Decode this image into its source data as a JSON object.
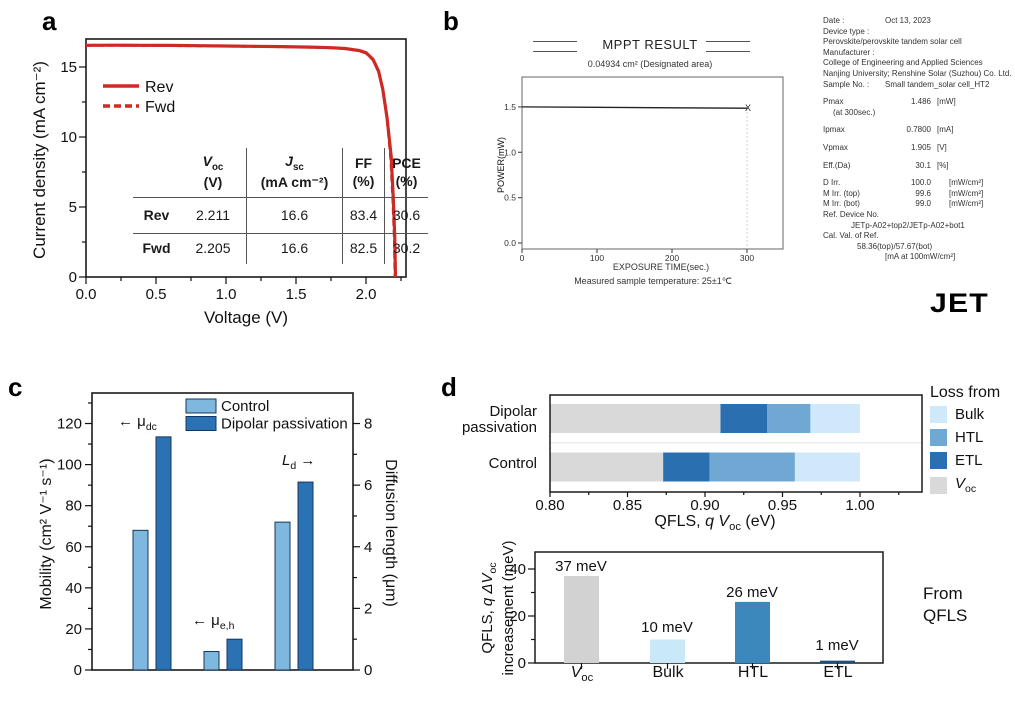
{
  "figure": {
    "panel_labels": [
      "a",
      "b",
      "c",
      "d"
    ]
  },
  "panel_a": {
    "xlabel": "Voltage (V)",
    "ylabel": "Current density (mA cm⁻²)",
    "legend": [
      "Rev",
      "Fwd"
    ],
    "table": {
      "headers": [
        {
          "sym": "V",
          "italic": true,
          "sub": "oc",
          "unit": "(V)"
        },
        {
          "sym": "J",
          "italic": true,
          "sub": "sc",
          "unit": "(mA cm⁻²)"
        },
        {
          "sym": "FF",
          "italic": false,
          "sub": "",
          "unit": "(%)"
        },
        {
          "sym": "PCE",
          "italic": false,
          "sub": "",
          "unit": "(%)"
        }
      ],
      "rows": [
        {
          "name": "Rev",
          "values": [
            "2.211",
            "16.6",
            "83.4",
            "30.6"
          ]
        },
        {
          "name": "Fwd",
          "values": [
            "2.205",
            "16.6",
            "82.5",
            "30.2"
          ]
        }
      ]
    }
  },
  "panel_b": {
    "title": "MPPT RESULT",
    "subtitle": "0.04934 cm² (Designated area)",
    "xlabel": "EXPOSURE TIME(sec.)",
    "ylabel": "POWER(mW)",
    "note": "Measured sample temperature: 25±1℃",
    "logo": "JET",
    "info_lines": [
      {
        "label": "Date :",
        "value": "Oct 13, 2023",
        "wide": true
      },
      {
        "label": "Device type :"
      },
      {
        "text": "Perovskite/perovskite tandem solar cell"
      },
      {
        "label": "Manufacturer :"
      },
      {
        "text": "College of Engineering and Applied Sciences"
      },
      {
        "text": "Nanjing University; Renshine Solar (Suzhou) Co. Ltd."
      },
      {
        "label": "Sample No. :",
        "value": "Small tandem_solar cell_HT2",
        "wide": true
      },
      {
        "label": "Pmax",
        "value": "1.486",
        "unit": "[mW]",
        "gap": true
      },
      {
        "text": "(at 300sec.)",
        "indent": 10
      },
      {
        "label": "Ipmax",
        "value": "0.7800",
        "unit": "[mA]",
        "gap": true
      },
      {
        "label": "Vpmax",
        "value": "1.905",
        "unit": "[V]",
        "gap": true
      },
      {
        "label": "Eff.(Da)",
        "value": "30.1",
        "unit": "[%]",
        "gap": true
      },
      {
        "label": "D Irr.",
        "value": "100.0",
        "unit": "[mW/cm²]",
        "far": true,
        "gap": true
      },
      {
        "label": "M Irr. (top)",
        "value": "99.6",
        "unit": "[mW/cm²]",
        "far": true
      },
      {
        "label": "M Irr. (bot)",
        "value": "99.0",
        "unit": "[mW/cm²]",
        "far": true
      },
      {
        "label": "Ref. Device No."
      },
      {
        "text": "JETp-A02+top2/JETp-A02+bot1",
        "indent": 28
      },
      {
        "label": "Cal. Val. of Ref."
      },
      {
        "text": "58.36(top)/57.67(bot)",
        "indent": 34
      },
      {
        "text": "[mA at 100mW/cm²]",
        "indent": 62
      }
    ]
  },
  "panel_c": {
    "ylabel_left": "Mobility (cm² V⁻¹ s⁻¹)",
    "ylabel_right": "Diffusion length (μm)",
    "legend": [
      "Control",
      "Dipolar passivation"
    ],
    "annotations": [
      {
        "parts": [
          {
            "t": "← μ"
          },
          {
            "t": "dc",
            "sub": 1
          }
        ]
      },
      {
        "parts": [
          {
            "t": "← μ"
          },
          {
            "t": "e,h",
            "sub": 1
          }
        ]
      },
      {
        "parts": [
          {
            "t": "L",
            "i": 1
          },
          {
            "t": "d",
            "sub": 1
          },
          {
            "t": " →"
          }
        ]
      }
    ]
  },
  "panel_d": {
    "legend_title": "Loss from",
    "legend_items": [
      {
        "parts": [
          {
            "t": "Bulk"
          }
        ],
        "color": "#cfe9fa"
      },
      {
        "parts": [
          {
            "t": "HTL"
          }
        ],
        "color": "#6fa8d2"
      },
      {
        "parts": [
          {
            "t": "ETL"
          }
        ],
        "color": "#2a6fb0"
      },
      {
        "parts": [
          {
            "t": "V",
            "i": 1
          },
          {
            "t": "oc",
            "sub": 1
          }
        ],
        "color": "#d9d9d9"
      }
    ],
    "row_labels": [
      "Dipolar",
      "passivation",
      "Control"
    ],
    "xlabel_parts": [
      {
        "t": "QFLS, "
      },
      {
        "t": "q V",
        "i": 1
      },
      {
        "t": "oc",
        "sub": 1
      },
      {
        "t": " (eV)"
      }
    ],
    "ylabel2_line1_parts": [
      {
        "t": "QFLS, "
      },
      {
        "t": "q ΔV",
        "i": 1
      },
      {
        "t": "oc",
        "sub": 1
      }
    ],
    "ylabel2_line2": "increasement (meV)",
    "from_qfls": [
      "From",
      "QFLS"
    ],
    "cat_parts": [
      [
        {
          "t": "V",
          "i": 1
        },
        {
          "t": "oc",
          "sub": 1
        }
      ],
      [
        {
          "t": "Bulk"
        }
      ],
      [
        {
          "t": "HTL"
        }
      ],
      [
        {
          "t": "ETL"
        }
      ]
    ]
  },
  "chart_data": [
    {
      "id": "a",
      "type": "line",
      "xlabel": "Voltage (V)",
      "ylabel": "Current density (mA cm⁻²)",
      "xlim": [
        0,
        2.29
      ],
      "ylim": [
        0,
        17.0
      ],
      "xticks": [
        0.0,
        0.5,
        1.0,
        1.5,
        2.0
      ],
      "xtick_labels": [
        "0.0",
        "0.5",
        "1.0",
        "1.5",
        "2.0"
      ],
      "yticks": [
        0,
        5,
        10,
        15
      ],
      "ytick_labels": [
        "0",
        "5",
        "10",
        "15"
      ],
      "line_color": "#cd2a24",
      "series": [
        {
          "name": "Rev",
          "style": "solid",
          "points": [
            [
              0,
              16.55
            ],
            [
              0.2,
              16.56
            ],
            [
              0.4,
              16.55
            ],
            [
              0.6,
              16.54
            ],
            [
              0.8,
              16.52
            ],
            [
              1.0,
              16.5
            ],
            [
              1.2,
              16.48
            ],
            [
              1.4,
              16.46
            ],
            [
              1.6,
              16.42
            ],
            [
              1.75,
              16.38
            ],
            [
              1.85,
              16.32
            ],
            [
              1.95,
              16.18
            ],
            [
              2.0,
              16.02
            ],
            [
              2.05,
              15.55
            ],
            [
              2.09,
              14.7
            ],
            [
              2.12,
              13.4
            ],
            [
              2.15,
              11.4
            ],
            [
              2.18,
              8.6
            ],
            [
              2.195,
              5.6
            ],
            [
              2.205,
              3.0
            ],
            [
              2.211,
              0
            ]
          ]
        },
        {
          "name": "Fwd",
          "style": "dashed",
          "points": [
            [
              0,
              16.52
            ],
            [
              0.2,
              16.53
            ],
            [
              0.4,
              16.52
            ],
            [
              0.6,
              16.51
            ],
            [
              0.8,
              16.49
            ],
            [
              1.0,
              16.47
            ],
            [
              1.2,
              16.45
            ],
            [
              1.4,
              16.43
            ],
            [
              1.6,
              16.39
            ],
            [
              1.75,
              16.35
            ],
            [
              1.85,
              16.29
            ],
            [
              1.95,
              16.14
            ],
            [
              2.0,
              15.97
            ],
            [
              2.05,
              15.48
            ],
            [
              2.09,
              14.6
            ],
            [
              2.12,
              13.3
            ],
            [
              2.15,
              11.2
            ],
            [
              2.175,
              8.4
            ],
            [
              2.19,
              5.4
            ],
            [
              2.2,
              2.8
            ],
            [
              2.205,
              0
            ]
          ]
        }
      ],
      "jv_parameters": {
        "Rev": {
          "Voc_V": 2.211,
          "Jsc_mA_cm2": 16.6,
          "FF_pct": 83.4,
          "PCE_pct": 30.6
        },
        "Fwd": {
          "Voc_V": 2.205,
          "Jsc_mA_cm2": 16.6,
          "FF_pct": 82.5,
          "PCE_pct": 30.2
        }
      }
    },
    {
      "id": "b",
      "type": "line",
      "title": "MPPT RESULT",
      "subtitle": "0.04934 cm² (Designated area)",
      "xlabel": "EXPOSURE TIME(sec.)",
      "ylabel": "POWER(mW)",
      "xlim": [
        0,
        348
      ],
      "ylim": [
        0,
        1.9
      ],
      "xticks": [
        0,
        100,
        200,
        300
      ],
      "xtick_labels": [
        "0",
        "100",
        "200",
        "300"
      ],
      "yticks": [
        0.0,
        0.5,
        1.0,
        1.5
      ],
      "ytick_labels": [
        "0.0",
        "0.5",
        "1.0",
        "1.5"
      ],
      "series": [
        {
          "name": "MPPT power",
          "color": "#222222",
          "points": [
            [
              0,
              1.5
            ],
            [
              100,
              1.496
            ],
            [
              200,
              1.491
            ],
            [
              300,
              1.486
            ]
          ]
        }
      ],
      "end_marker": "X",
      "pmax_at_300s_mW": 1.486
    },
    {
      "id": "c",
      "type": "bar",
      "ylabel_left": "Mobility (cm² V⁻¹ s⁻¹)",
      "ylabel_right": "Diffusion length (μm)",
      "ylim_left": [
        0,
        134.6
      ],
      "ylim_right": [
        0,
        8.97
      ],
      "yticks_left": [
        0,
        20,
        40,
        60,
        80,
        100,
        120
      ],
      "ytick_labels_left": [
        "0",
        "20",
        "40",
        "60",
        "80",
        "100",
        "120"
      ],
      "yticks_right": [
        0,
        2,
        4,
        6,
        8
      ],
      "ytick_labels_right": [
        "0",
        "2",
        "4",
        "6",
        "8"
      ],
      "series": [
        {
          "name": "Control",
          "color": "#7fb8de"
        },
        {
          "name": "Dipolar passivation",
          "color": "#2b72b4"
        }
      ],
      "groups": [
        {
          "label": "μdc",
          "axis": "left",
          "values": [
            68,
            113.5
          ]
        },
        {
          "label": "μe,h",
          "axis": "left",
          "values": [
            9,
            15
          ]
        },
        {
          "label": "Ld",
          "axis": "right",
          "values_um": [
            4.8,
            6.1
          ]
        }
      ]
    },
    {
      "id": "d_top",
      "type": "bar",
      "subtype": "horizontal-stacked",
      "xlabel": "QFLS, q Voc (eV)",
      "xlim": [
        0.8,
        1.04
      ],
      "xticks": [
        0.8,
        0.85,
        0.9,
        0.95,
        1.0
      ],
      "xtick_labels": [
        "0.80",
        "0.85",
        "0.90",
        "0.95",
        "1.00"
      ],
      "legend_title": "Loss from",
      "colors": {
        "Voc": "#d9d9d9",
        "ETL": "#2a6fb0",
        "HTL": "#6fa8d2",
        "Bulk": "#cfe9fa"
      },
      "rows": [
        {
          "label": "Dipolar passivation",
          "voc_end": 0.91,
          "etl_end": 0.94,
          "htl_end": 0.968,
          "bulk_end": 1.0
        },
        {
          "label": "Control",
          "voc_end": 0.873,
          "etl_end": 0.903,
          "htl_end": 0.958,
          "bulk_end": 1.0
        }
      ]
    },
    {
      "id": "d_bottom",
      "type": "bar",
      "ylabel": "QFLS, q ΔVoc increasement (meV)",
      "ylim": [
        0,
        47
      ],
      "yticks": [
        0,
        20,
        40
      ],
      "ytick_labels": [
        "0",
        "20",
        "40"
      ],
      "categories": [
        "Voc",
        "Bulk",
        "HTL",
        "ETL"
      ],
      "values": [
        37,
        10,
        26,
        1
      ],
      "labels": [
        "37 meV",
        "10 meV",
        "26 meV",
        "1 meV"
      ],
      "colors": [
        "#d2d2d2",
        "#c9e8f8",
        "#3c88bd",
        "#1f4e79"
      ],
      "annotation": "From QFLS"
    }
  ]
}
